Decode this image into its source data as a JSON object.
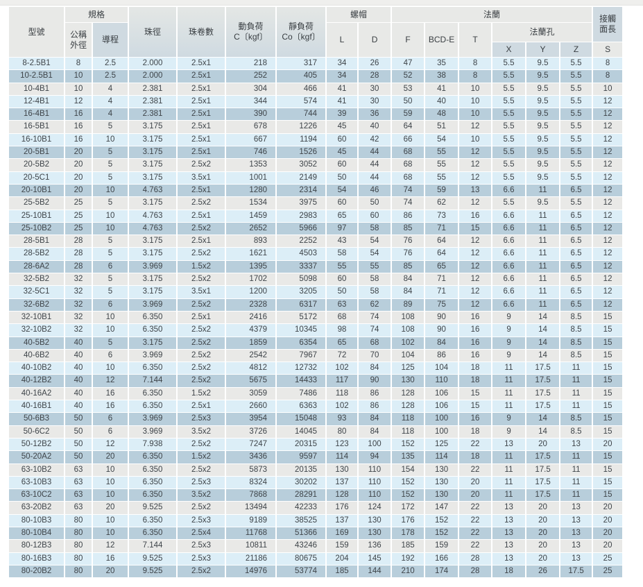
{
  "table": {
    "header": {
      "model": "型號",
      "spec": "規格",
      "nominal_od": "公稱\n外徑",
      "lead": "導程",
      "ball_diameter": "珠徑",
      "ball_circuits": "珠卷數",
      "dynamic_load": "動負荷\nC〔kgf〕",
      "static_load": "靜負荷\nCo〔kgf〕",
      "nut": "螺帽",
      "nut_l": "L",
      "nut_d": "D",
      "flange": "法蘭",
      "flange_f": "F",
      "flange_bcd_e": "BCD-E",
      "flange_t": "T",
      "flange_holes": "法蘭孔",
      "hole_x": "X",
      "hole_y": "Y",
      "hole_z": "Z",
      "contact_length": "接觸\n面長",
      "contact_s": "S"
    },
    "column_keys": [
      "model",
      "nominal-od",
      "lead",
      "ball-diameter",
      "ball-circuits",
      "dynamic-load-c",
      "static-load-co",
      "nut-l",
      "nut-d",
      "flange-f",
      "flange-bcd-e",
      "flange-t",
      "hole-x",
      "hole-y",
      "hole-z",
      "contact-s"
    ],
    "column_align": [
      "c",
      "c",
      "c",
      "c",
      "c",
      "r",
      "r",
      "c",
      "c",
      "c",
      "c",
      "c",
      "c",
      "c",
      "c",
      "c"
    ],
    "rows": [
      [
        "8-2.5B1",
        "8",
        "2.5",
        "2.000",
        "2.5x1",
        "218",
        "317",
        "34",
        "26",
        "47",
        "35",
        "8",
        "5.5",
        "9.5",
        "5.5",
        "8"
      ],
      [
        "10-2.5B1",
        "10",
        "2.5",
        "2.000",
        "2.5x1",
        "252",
        "405",
        "34",
        "28",
        "52",
        "38",
        "8",
        "5.5",
        "9.5",
        "5.5",
        "8"
      ],
      [
        "10-4B1",
        "10",
        "4",
        "2.381",
        "2.5x1",
        "304",
        "466",
        "41",
        "30",
        "53",
        "41",
        "10",
        "5.5",
        "9.5",
        "5.5",
        "10"
      ],
      [
        "12-4B1",
        "12",
        "4",
        "2.381",
        "2.5x1",
        "344",
        "574",
        "41",
        "30",
        "50",
        "40",
        "10",
        "5.5",
        "9.5",
        "5.5",
        "12"
      ],
      [
        "16-4B1",
        "16",
        "4",
        "2.381",
        "2.5x1",
        "390",
        "744",
        "39",
        "36",
        "59",
        "48",
        "10",
        "5.5",
        "9.5",
        "5.5",
        "12"
      ],
      [
        "16-5B1",
        "16",
        "5",
        "3.175",
        "2.5x1",
        "678",
        "1226",
        "45",
        "40",
        "64",
        "51",
        "12",
        "5.5",
        "9.5",
        "5.5",
        "12"
      ],
      [
        "16-10B1",
        "16",
        "10",
        "3.175",
        "2.5x1",
        "667",
        "1194",
        "60",
        "42",
        "66",
        "54",
        "10",
        "5.5",
        "9.5",
        "5.5",
        "12"
      ],
      [
        "20-5B1",
        "20",
        "5",
        "3.175",
        "2.5x1",
        "746",
        "1526",
        "45",
        "44",
        "68",
        "55",
        "12",
        "5.5",
        "9.5",
        "5.5",
        "12"
      ],
      [
        "20-5B2",
        "20",
        "5",
        "3.175",
        "2.5x2",
        "1353",
        "3052",
        "60",
        "44",
        "68",
        "55",
        "12",
        "5.5",
        "9.5",
        "5.5",
        "12"
      ],
      [
        "20-5C1",
        "20",
        "5",
        "3.175",
        "3.5x1",
        "1001",
        "2149",
        "50",
        "44",
        "68",
        "55",
        "12",
        "5.5",
        "9.5",
        "5.5",
        "12"
      ],
      [
        "20-10B1",
        "20",
        "10",
        "4.763",
        "2.5x1",
        "1280",
        "2314",
        "54",
        "46",
        "74",
        "59",
        "13",
        "6.6",
        "11",
        "6.5",
        "12"
      ],
      [
        "25-5B2",
        "25",
        "5",
        "3.175",
        "2.5x2",
        "1534",
        "3975",
        "60",
        "50",
        "74",
        "62",
        "12",
        "5.5",
        "9.5",
        "5.5",
        "12"
      ],
      [
        "25-10B1",
        "25",
        "10",
        "4.763",
        "2.5x1",
        "1459",
        "2983",
        "65",
        "60",
        "86",
        "73",
        "16",
        "6.6",
        "11",
        "6.5",
        "12"
      ],
      [
        "25-10B2",
        "25",
        "10",
        "4.763",
        "2.5x2",
        "2652",
        "5966",
        "97",
        "58",
        "85",
        "71",
        "15",
        "6.6",
        "11",
        "6.5",
        "12"
      ],
      [
        "28-5B1",
        "28",
        "5",
        "3.175",
        "2.5x1",
        "893",
        "2252",
        "43",
        "54",
        "76",
        "64",
        "12",
        "6.6",
        "11",
        "6.5",
        "12"
      ],
      [
        "28-5B2",
        "28",
        "5",
        "3.175",
        "2.5x2",
        "1621",
        "4503",
        "58",
        "54",
        "76",
        "64",
        "12",
        "6.6",
        "11",
        "6.5",
        "12"
      ],
      [
        "28-6A2",
        "28",
        "6",
        "3.969",
        "1.5x2",
        "1395",
        "3337",
        "55",
        "55",
        "85",
        "65",
        "12",
        "6.6",
        "11",
        "6.5",
        "12"
      ],
      [
        "32-5B2",
        "32",
        "5",
        "3.175",
        "2.5x2",
        "1702",
        "5098",
        "60",
        "58",
        "84",
        "71",
        "12",
        "6.6",
        "11",
        "6.5",
        "12"
      ],
      [
        "32-5C1",
        "32",
        "5",
        "3.175",
        "3.5x1",
        "1200",
        "3205",
        "50",
        "58",
        "84",
        "71",
        "12",
        "6.6",
        "11",
        "6.5",
        "12"
      ],
      [
        "32-6B2",
        "32",
        "6",
        "3.969",
        "2.5x2",
        "2328",
        "6317",
        "63",
        "62",
        "89",
        "75",
        "12",
        "6.6",
        "11",
        "6.5",
        "12"
      ],
      [
        "32-10B1",
        "32",
        "10",
        "6.350",
        "2.5x1",
        "2416",
        "5172",
        "68",
        "74",
        "108",
        "90",
        "16",
        "9",
        "14",
        "8.5",
        "15"
      ],
      [
        "32-10B2",
        "32",
        "10",
        "6.350",
        "2.5x2",
        "4379",
        "10345",
        "98",
        "74",
        "108",
        "90",
        "16",
        "9",
        "14",
        "8.5",
        "15"
      ],
      [
        "40-5B2",
        "40",
        "5",
        "3.175",
        "2.5x2",
        "1859",
        "6354",
        "65",
        "68",
        "102",
        "84",
        "16",
        "9",
        "14",
        "8.5",
        "15"
      ],
      [
        "40-6B2",
        "40",
        "6",
        "3.969",
        "2.5x2",
        "2542",
        "7967",
        "72",
        "70",
        "104",
        "86",
        "16",
        "9",
        "14",
        "8.5",
        "15"
      ],
      [
        "40-10B2",
        "40",
        "10",
        "6.350",
        "2.5x2",
        "4812",
        "12732",
        "102",
        "84",
        "125",
        "104",
        "18",
        "11",
        "17.5",
        "11",
        "15"
      ],
      [
        "40-12B2",
        "40",
        "12",
        "7.144",
        "2.5x2",
        "5675",
        "14433",
        "117",
        "90",
        "130",
        "110",
        "18",
        "11",
        "17.5",
        "11",
        "15"
      ],
      [
        "40-16A2",
        "40",
        "16",
        "6.350",
        "1.5x2",
        "3059",
        "7486",
        "118",
        "86",
        "128",
        "106",
        "15",
        "11",
        "17.5",
        "11",
        "15"
      ],
      [
        "40-16B1",
        "40",
        "16",
        "6.350",
        "2.5x1",
        "2660",
        "6363",
        "102",
        "86",
        "128",
        "106",
        "15",
        "11",
        "17.5",
        "11",
        "15"
      ],
      [
        "50-6B3",
        "50",
        "6",
        "3.969",
        "2.5x3",
        "3954",
        "15048",
        "93",
        "84",
        "118",
        "100",
        "16",
        "9",
        "14",
        "8.5",
        "15"
      ],
      [
        "50-6C2",
        "50",
        "6",
        "3.969",
        "3.5x2",
        "3726",
        "14045",
        "80",
        "84",
        "118",
        "100",
        "18",
        "9",
        "14",
        "8.5",
        "15"
      ],
      [
        "50-12B2",
        "50",
        "12",
        "7.938",
        "2.5x2",
        "7247",
        "20315",
        "123",
        "100",
        "152",
        "125",
        "22",
        "13",
        "20",
        "13",
        "20"
      ],
      [
        "50-20A2",
        "50",
        "20",
        "6.350",
        "1.5x2",
        "3436",
        "9597",
        "114",
        "94",
        "135",
        "114",
        "18",
        "11",
        "17.5",
        "11",
        "15"
      ],
      [
        "63-10B2",
        "63",
        "10",
        "6.350",
        "2.5x2",
        "5873",
        "20135",
        "130",
        "110",
        "154",
        "130",
        "22",
        "11",
        "17.5",
        "11",
        "15"
      ],
      [
        "63-10B3",
        "63",
        "10",
        "6.350",
        "2.5x3",
        "8324",
        "30202",
        "137",
        "110",
        "152",
        "130",
        "20",
        "11",
        "17.5",
        "11",
        "15"
      ],
      [
        "63-10C2",
        "63",
        "10",
        "6.350",
        "3.5x2",
        "7868",
        "28291",
        "128",
        "110",
        "152",
        "130",
        "20",
        "11",
        "17.5",
        "11",
        "15"
      ],
      [
        "63-20B2",
        "63",
        "20",
        "9.525",
        "2.5x2",
        "13494",
        "42233",
        "176",
        "124",
        "172",
        "147",
        "22",
        "13",
        "20",
        "13",
        "20"
      ],
      [
        "80-10B3",
        "80",
        "10",
        "6.350",
        "2.5x3",
        "9189",
        "38525",
        "137",
        "130",
        "176",
        "152",
        "22",
        "13",
        "20",
        "13",
        "20"
      ],
      [
        "80-10B4",
        "80",
        "10",
        "6.350",
        "2.5x4",
        "11768",
        "51366",
        "169",
        "130",
        "178",
        "152",
        "22",
        "13",
        "20",
        "13",
        "20"
      ],
      [
        "80-12B3",
        "80",
        "12",
        "7.144",
        "2.5x3",
        "10811",
        "43246",
        "159",
        "136",
        "185",
        "159",
        "22",
        "13",
        "20",
        "13",
        "20"
      ],
      [
        "80-16B3",
        "80",
        "16",
        "9.525",
        "2.5x3",
        "21186",
        "80675",
        "204",
        "145",
        "192",
        "166",
        "28",
        "13",
        "20",
        "13",
        "25"
      ],
      [
        "80-20B2",
        "80",
        "20",
        "9.525",
        "2.5x2",
        "14976",
        "53774",
        "185",
        "144",
        "210",
        "174",
        "28",
        "18",
        "26",
        "17.5",
        "25"
      ]
    ],
    "row_colors": {
      "pale_blue": "#dceef7",
      "dark_blue": "#b8cedb",
      "gray": "#e9e9e7"
    },
    "header_colors": {
      "gray": "#e8e9e7",
      "blue_gray": "#cfdae1"
    }
  }
}
